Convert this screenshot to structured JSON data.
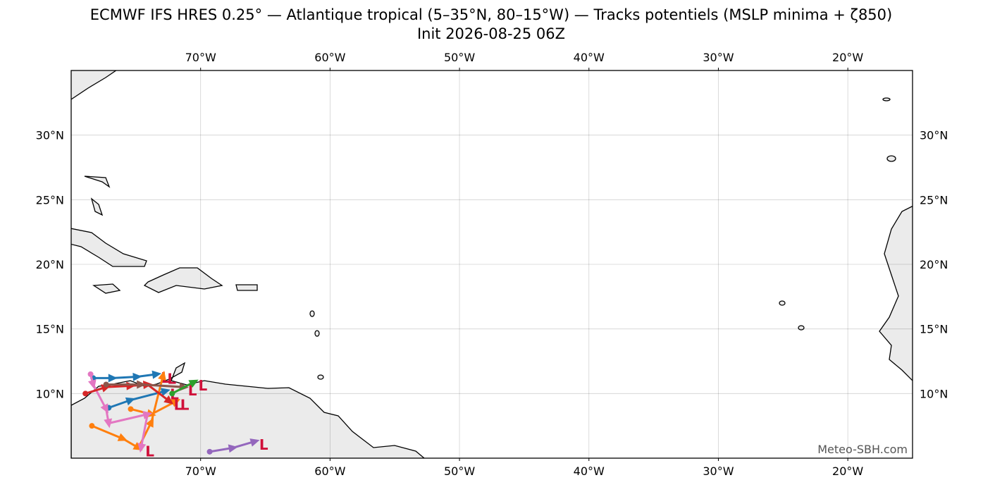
{
  "chart_data": {
    "type": "map",
    "title": "ECMWF IFS HRES 0.25° — Atlantique tropical (5–35°N, 80–15°W) — Tracks potentiels (MSLP minima + ζ850)",
    "subtitle": "Init 2026-08-25 06Z",
    "credit": "Meteo-SBH.com",
    "low_label": "L",
    "xlim": [
      -80,
      -15
    ],
    "ylim": [
      5,
      35
    ],
    "grid": true,
    "xticks": [
      {
        "value": -70,
        "label": "70°W"
      },
      {
        "value": -60,
        "label": "60°W"
      },
      {
        "value": -50,
        "label": "50°W"
      },
      {
        "value": -40,
        "label": "40°W"
      },
      {
        "value": -30,
        "label": "30°W"
      },
      {
        "value": -20,
        "label": "20°W"
      }
    ],
    "yticks": [
      {
        "value": 10,
        "label": "10°N"
      },
      {
        "value": 15,
        "label": "15°N"
      },
      {
        "value": 20,
        "label": "20°N"
      },
      {
        "value": 25,
        "label": "25°N"
      },
      {
        "value": 30,
        "label": "30°N"
      }
    ],
    "tracks": [
      {
        "color": "#1f77b4",
        "lon": [
          -78.3,
          -76.8,
          -74.9,
          -73.4
        ],
        "lat": [
          11.2,
          11.2,
          11.3,
          11.5
        ]
      },
      {
        "color": "#1f77b4",
        "lon": [
          -77.1,
          -75.4,
          -72.7
        ],
        "lat": [
          8.9,
          9.5,
          10.2
        ]
      },
      {
        "color": "#ff7f0e",
        "lon": [
          -78.4,
          -76.0,
          -74.8,
          -73.8,
          -72.9
        ],
        "lat": [
          7.5,
          6.5,
          5.8,
          7.8,
          11.4
        ]
      },
      {
        "color": "#ff7f0e",
        "lon": [
          -75.4,
          -73.8,
          -71.9
        ],
        "lat": [
          8.8,
          8.4,
          9.4
        ]
      },
      {
        "color": "#e377c2",
        "lon": [
          -78.5,
          -78.3,
          -77.3,
          -77.1,
          -74.1,
          -74.6
        ],
        "lat": [
          11.5,
          10.7,
          8.8,
          7.7,
          8.4,
          5.8
        ]
      },
      {
        "color": "#d62728",
        "lon": [
          -78.9,
          -77.3,
          -75.4,
          -74.1,
          -72.4
        ],
        "lat": [
          10.0,
          10.5,
          10.6,
          10.7,
          9.4
        ]
      },
      {
        "color": "#8c564b",
        "lon": [
          -77.3,
          -74.6,
          -71.3
        ],
        "lat": [
          10.7,
          10.7,
          10.5
        ]
      },
      {
        "color": "#2ca02c",
        "lon": [
          -72.2,
          -70.5
        ],
        "lat": [
          10.0,
          10.9
        ]
      },
      {
        "color": "#9467bd",
        "lon": [
          -69.3,
          -67.5,
          -65.8
        ],
        "lat": [
          5.5,
          5.8,
          6.3
        ]
      }
    ]
  }
}
